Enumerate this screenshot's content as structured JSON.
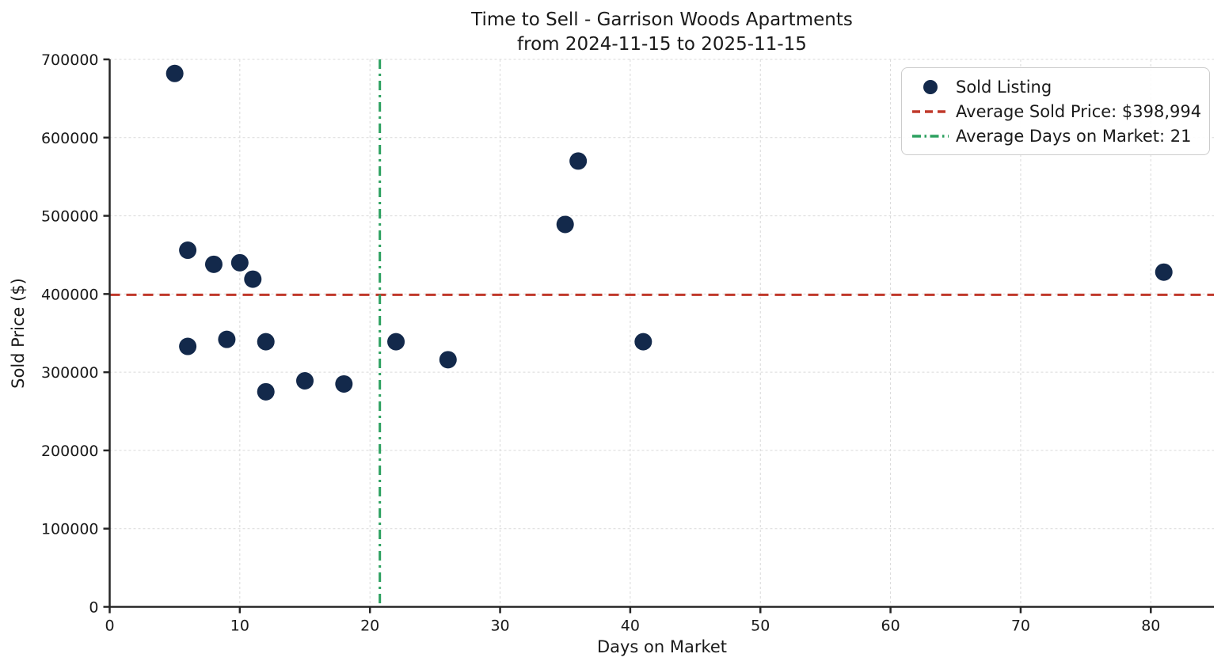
{
  "chart_data": {
    "type": "scatter",
    "title": "Time to Sell - Garrison Woods Apartments",
    "subtitle": "from 2024-11-15 to 2025-11-15",
    "xlabel": "Days on Market",
    "ylabel": "Sold Price ($)",
    "xlim": [
      0,
      84.85
    ],
    "ylim": [
      0,
      700000
    ],
    "xticks": [
      0,
      10,
      20,
      30,
      40,
      50,
      60,
      70,
      80
    ],
    "yticks": [
      0,
      100000,
      200000,
      300000,
      400000,
      500000,
      600000,
      700000
    ],
    "grid": true,
    "grid_style": "dashed",
    "legend_position": "upper right",
    "series": [
      {
        "name": "Sold Listing",
        "marker": "circle",
        "color": "#13294B",
        "points_format": [
          "days_on_market",
          "sold_price_usd"
        ],
        "points": [
          [
            5,
            682000
          ],
          [
            6,
            456000
          ],
          [
            6,
            333000
          ],
          [
            8,
            438000
          ],
          [
            9,
            342000
          ],
          [
            10,
            440000
          ],
          [
            11,
            419000
          ],
          [
            12,
            339000
          ],
          [
            12,
            275000
          ],
          [
            15,
            289000
          ],
          [
            18,
            285000
          ],
          [
            22,
            339000
          ],
          [
            26,
            316000
          ],
          [
            35,
            489000
          ],
          [
            36,
            570000
          ],
          [
            41,
            339000
          ],
          [
            81,
            428000
          ]
        ]
      }
    ],
    "reference_lines": [
      {
        "name": "average-sold-price",
        "orientation": "horizontal",
        "value": 398994,
        "label": "Average Sold Price: $398,994",
        "color": "#C0392B",
        "style": "dashed"
      },
      {
        "name": "average-days-on-market",
        "orientation": "vertical",
        "value": 20.76,
        "label": "Average Days on Market: 21",
        "color": "#2BA05F",
        "style": "dashdot"
      }
    ],
    "legend": [
      {
        "marker": "dot",
        "label": "Sold Listing"
      },
      {
        "marker": "dashed-line",
        "label": "Average Sold Price: $398,994"
      },
      {
        "marker": "dashdot-line",
        "label": "Average Days on Market: 21"
      }
    ],
    "colors": {
      "marker": "#13294B",
      "avg_price_line": "#C0392B",
      "avg_days_line": "#2BA05F",
      "grid": "#d9d9d9",
      "spine": "#262626",
      "text": "#1a1a1a"
    }
  }
}
